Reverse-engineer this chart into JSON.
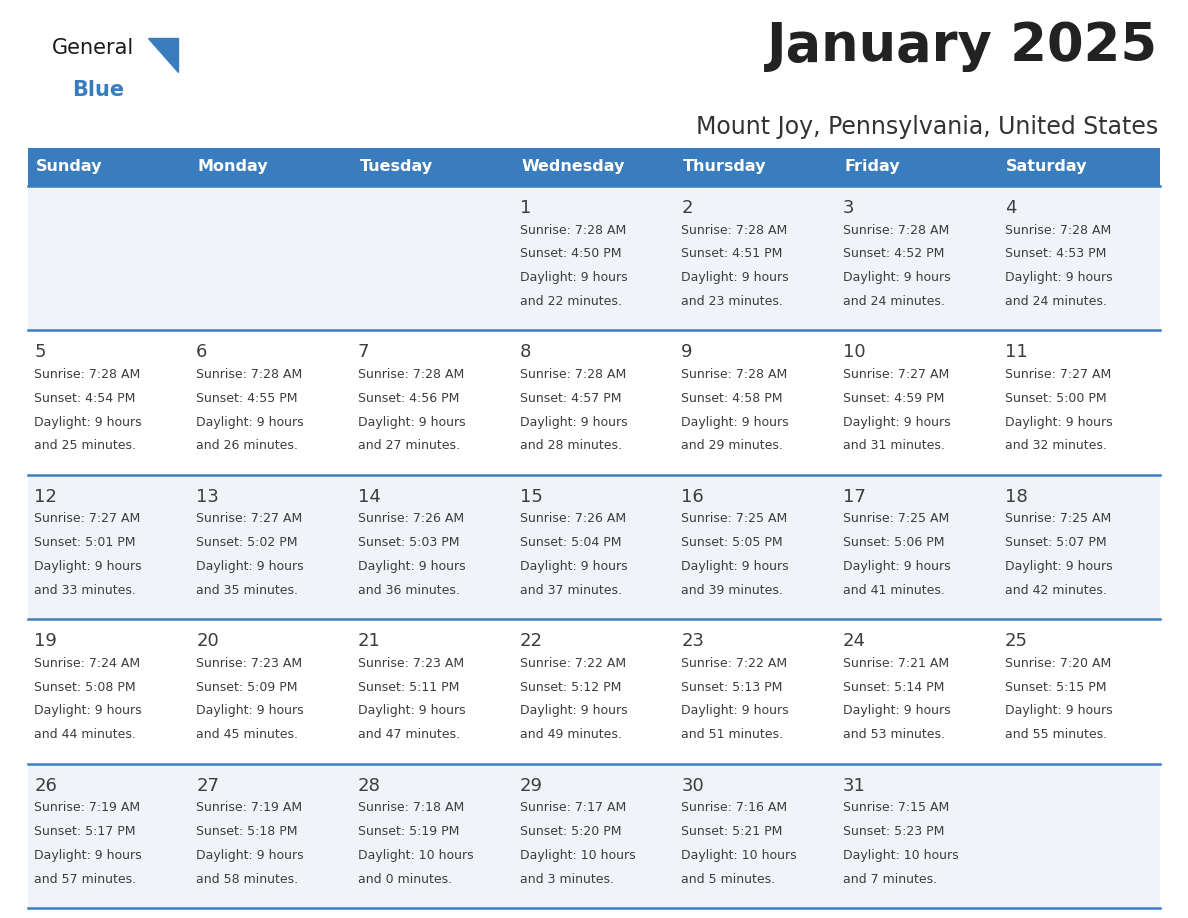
{
  "title": "January 2025",
  "subtitle": "Mount Joy, Pennsylvania, United States",
  "days_of_week": [
    "Sunday",
    "Monday",
    "Tuesday",
    "Wednesday",
    "Thursday",
    "Friday",
    "Saturday"
  ],
  "header_bg": "#3a7dbf",
  "header_text": "#ffffff",
  "cell_bg_light": "#f0f4f8",
  "cell_bg_white": "#ffffff",
  "row_line_color": "#3a7dbf",
  "text_color": "#3d3d3d",
  "calendar_data": [
    [
      {
        "day": null,
        "sunrise": null,
        "sunset": null,
        "daylight": null
      },
      {
        "day": null,
        "sunrise": null,
        "sunset": null,
        "daylight": null
      },
      {
        "day": null,
        "sunrise": null,
        "sunset": null,
        "daylight": null
      },
      {
        "day": "1",
        "sunrise": "7:28 AM",
        "sunset": "4:50 PM",
        "daylight": "9 hours",
        "daylight2": "and 22 minutes."
      },
      {
        "day": "2",
        "sunrise": "7:28 AM",
        "sunset": "4:51 PM",
        "daylight": "9 hours",
        "daylight2": "and 23 minutes."
      },
      {
        "day": "3",
        "sunrise": "7:28 AM",
        "sunset": "4:52 PM",
        "daylight": "9 hours",
        "daylight2": "and 24 minutes."
      },
      {
        "day": "4",
        "sunrise": "7:28 AM",
        "sunset": "4:53 PM",
        "daylight": "9 hours",
        "daylight2": "and 24 minutes."
      }
    ],
    [
      {
        "day": "5",
        "sunrise": "7:28 AM",
        "sunset": "4:54 PM",
        "daylight": "9 hours",
        "daylight2": "and 25 minutes."
      },
      {
        "day": "6",
        "sunrise": "7:28 AM",
        "sunset": "4:55 PM",
        "daylight": "9 hours",
        "daylight2": "and 26 minutes."
      },
      {
        "day": "7",
        "sunrise": "7:28 AM",
        "sunset": "4:56 PM",
        "daylight": "9 hours",
        "daylight2": "and 27 minutes."
      },
      {
        "day": "8",
        "sunrise": "7:28 AM",
        "sunset": "4:57 PM",
        "daylight": "9 hours",
        "daylight2": "and 28 minutes."
      },
      {
        "day": "9",
        "sunrise": "7:28 AM",
        "sunset": "4:58 PM",
        "daylight": "9 hours",
        "daylight2": "and 29 minutes."
      },
      {
        "day": "10",
        "sunrise": "7:27 AM",
        "sunset": "4:59 PM",
        "daylight": "9 hours",
        "daylight2": "and 31 minutes."
      },
      {
        "day": "11",
        "sunrise": "7:27 AM",
        "sunset": "5:00 PM",
        "daylight": "9 hours",
        "daylight2": "and 32 minutes."
      }
    ],
    [
      {
        "day": "12",
        "sunrise": "7:27 AM",
        "sunset": "5:01 PM",
        "daylight": "9 hours",
        "daylight2": "and 33 minutes."
      },
      {
        "day": "13",
        "sunrise": "7:27 AM",
        "sunset": "5:02 PM",
        "daylight": "9 hours",
        "daylight2": "and 35 minutes."
      },
      {
        "day": "14",
        "sunrise": "7:26 AM",
        "sunset": "5:03 PM",
        "daylight": "9 hours",
        "daylight2": "and 36 minutes."
      },
      {
        "day": "15",
        "sunrise": "7:26 AM",
        "sunset": "5:04 PM",
        "daylight": "9 hours",
        "daylight2": "and 37 minutes."
      },
      {
        "day": "16",
        "sunrise": "7:25 AM",
        "sunset": "5:05 PM",
        "daylight": "9 hours",
        "daylight2": "and 39 minutes."
      },
      {
        "day": "17",
        "sunrise": "7:25 AM",
        "sunset": "5:06 PM",
        "daylight": "9 hours",
        "daylight2": "and 41 minutes."
      },
      {
        "day": "18",
        "sunrise": "7:25 AM",
        "sunset": "5:07 PM",
        "daylight": "9 hours",
        "daylight2": "and 42 minutes."
      }
    ],
    [
      {
        "day": "19",
        "sunrise": "7:24 AM",
        "sunset": "5:08 PM",
        "daylight": "9 hours",
        "daylight2": "and 44 minutes."
      },
      {
        "day": "20",
        "sunrise": "7:23 AM",
        "sunset": "5:09 PM",
        "daylight": "9 hours",
        "daylight2": "and 45 minutes."
      },
      {
        "day": "21",
        "sunrise": "7:23 AM",
        "sunset": "5:11 PM",
        "daylight": "9 hours",
        "daylight2": "and 47 minutes."
      },
      {
        "day": "22",
        "sunrise": "7:22 AM",
        "sunset": "5:12 PM",
        "daylight": "9 hours",
        "daylight2": "and 49 minutes."
      },
      {
        "day": "23",
        "sunrise": "7:22 AM",
        "sunset": "5:13 PM",
        "daylight": "9 hours",
        "daylight2": "and 51 minutes."
      },
      {
        "day": "24",
        "sunrise": "7:21 AM",
        "sunset": "5:14 PM",
        "daylight": "9 hours",
        "daylight2": "and 53 minutes."
      },
      {
        "day": "25",
        "sunrise": "7:20 AM",
        "sunset": "5:15 PM",
        "daylight": "9 hours",
        "daylight2": "and 55 minutes."
      }
    ],
    [
      {
        "day": "26",
        "sunrise": "7:19 AM",
        "sunset": "5:17 PM",
        "daylight": "9 hours",
        "daylight2": "and 57 minutes."
      },
      {
        "day": "27",
        "sunrise": "7:19 AM",
        "sunset": "5:18 PM",
        "daylight": "9 hours",
        "daylight2": "and 58 minutes."
      },
      {
        "day": "28",
        "sunrise": "7:18 AM",
        "sunset": "5:19 PM",
        "daylight": "10 hours",
        "daylight2": "and 0 minutes."
      },
      {
        "day": "29",
        "sunrise": "7:17 AM",
        "sunset": "5:20 PM",
        "daylight": "10 hours",
        "daylight2": "and 3 minutes."
      },
      {
        "day": "30",
        "sunrise": "7:16 AM",
        "sunset": "5:21 PM",
        "daylight": "10 hours",
        "daylight2": "and 5 minutes."
      },
      {
        "day": "31",
        "sunrise": "7:15 AM",
        "sunset": "5:23 PM",
        "daylight": "10 hours",
        "daylight2": "and 7 minutes."
      },
      {
        "day": null,
        "sunrise": null,
        "sunset": null,
        "daylight": null,
        "daylight2": null
      }
    ]
  ],
  "logo_color_general": "#1a1a1a",
  "logo_color_blue": "#3a7dbf"
}
